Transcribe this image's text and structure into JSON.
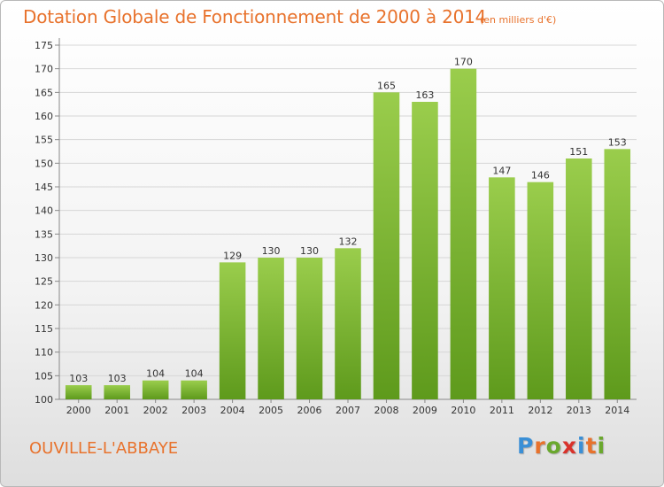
{
  "title": "Dotation Globale de Fonctionnement de 2000 à 2014",
  "unit_note": "(en milliers d'€)",
  "commune": "OUVILLE-L'ABBAYE",
  "logo": {
    "letters": [
      "P",
      "r",
      "o",
      "x",
      "i",
      "t",
      "i"
    ],
    "colors": [
      "#3a8fd6",
      "#e8722c",
      "#6aa82d",
      "#d9322b",
      "#3a8fd6",
      "#e8722c",
      "#6aa82d"
    ]
  },
  "colors": {
    "bar_top": "#9acd4c",
    "bar_bottom": "#5e9a1c",
    "text": "#e8722c"
  },
  "chart_data": {
    "type": "bar",
    "categories": [
      "2000",
      "2001",
      "2002",
      "2003",
      "2004",
      "2005",
      "2006",
      "2007",
      "2008",
      "2009",
      "2010",
      "2011",
      "2012",
      "2013",
      "2014"
    ],
    "values": [
      103,
      103,
      104,
      104,
      129,
      130,
      130,
      132,
      165,
      163,
      170,
      147,
      146,
      151,
      153
    ],
    "data_labels": [
      "103",
      "103",
      "104",
      "104",
      "129",
      "130",
      "130",
      "132",
      "165",
      "163",
      "170",
      "147",
      "146",
      "151",
      "153"
    ],
    "yticks": [
      "100",
      "105",
      "110",
      "115",
      "120",
      "125",
      "130",
      "135",
      "140",
      "145",
      "150",
      "155",
      "160",
      "165",
      "170",
      "175"
    ],
    "ylim": [
      100,
      175
    ],
    "grid": true,
    "title": "Dotation Globale de Fonctionnement de 2000 à 2014",
    "xlabel": "",
    "ylabel": ""
  }
}
